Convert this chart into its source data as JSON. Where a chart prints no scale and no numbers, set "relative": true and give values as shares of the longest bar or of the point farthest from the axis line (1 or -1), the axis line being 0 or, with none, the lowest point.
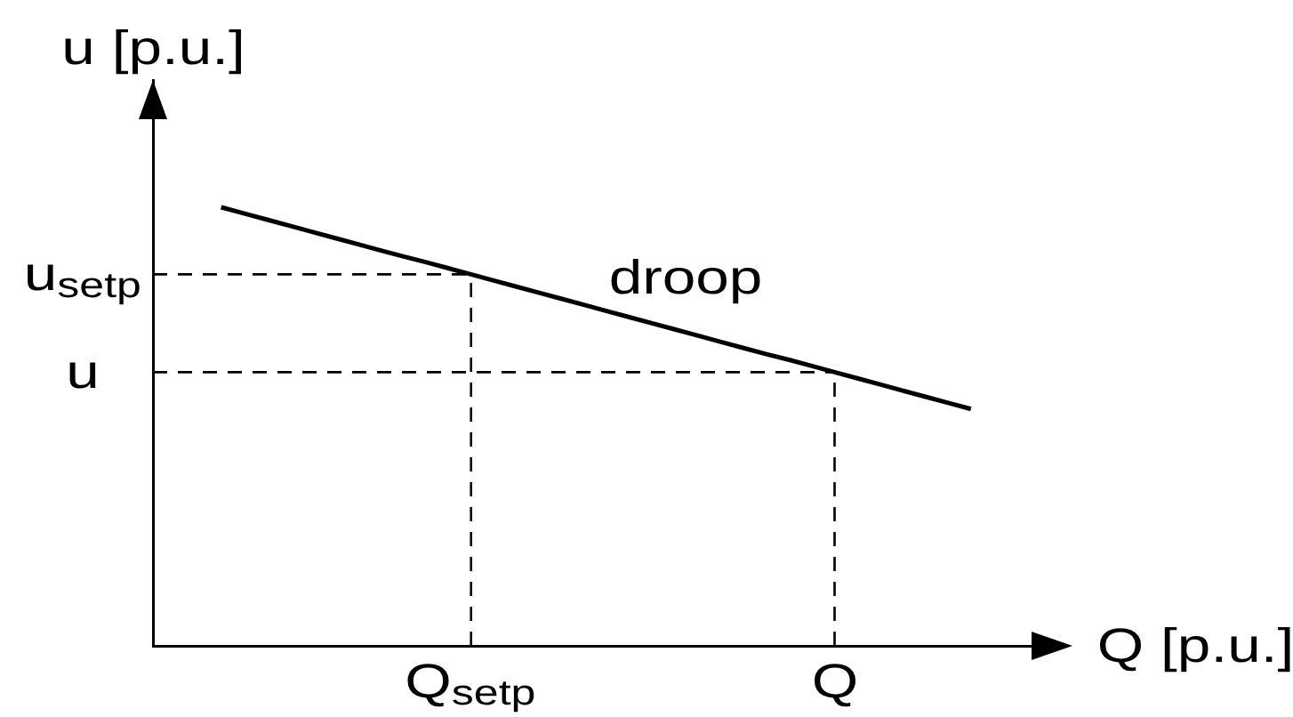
{
  "chart_data": {
    "type": "line",
    "relative": true,
    "xlabel": "Q [p.u.]",
    "ylabel": "u [p.u.]",
    "marker": "none",
    "tick_labels": "x",
    "categories": [
      null,
      null,
      null,
      null,
      null,
      null,
      null,
      null,
      null,
      null,
      null,
      null,
      null,
      null,
      "Q$_{setp}$",
      null,
      null,
      null,
      null,
      null,
      null,
      null,
      null,
      null,
      null,
      null,
      null,
      null,
      null,
      null,
      "Q",
      null,
      null,
      null,
      null,
      null,
      null,
      null,
      null,
      null,
      null
    ],
    "series": [
      {
        "name": "droop",
        "color": "#000000",
        "values": [
          null,
          null,
          null,
          1,
          0.986,
          0.972,
          0.958,
          0.944,
          0.93,
          0.916,
          0.902,
          0.888,
          0.875,
          0.861,
          0.847,
          0.833,
          0.819,
          0.805,
          0.791,
          0.777,
          0.763,
          0.749,
          0.735,
          0.721,
          0.707,
          0.693,
          0.679,
          0.665,
          0.652,
          0.638,
          0.624,
          0.61,
          0.596,
          0.582,
          0.568,
          0.554,
          0.54,
          null,
          null,
          null,
          null
        ]
      }
    ],
    "ref_lines": [
      {
        "axis": "y",
        "value": 0.847,
        "label": "u$_{setp}$",
        "color": "#000000",
        "line_style": "dashed"
      },
      {
        "axis": "y",
        "value": 0.624,
        "label": "u",
        "color": "#000000",
        "line_style": "dashed"
      },
      {
        "axis": "x",
        "value": "Q$_{setp}$",
        "color": "#000000",
        "line_style": "dashed"
      },
      {
        "axis": "x",
        "value": "Q",
        "color": "#000000",
        "line_style": "dashed"
      }
    ]
  }
}
